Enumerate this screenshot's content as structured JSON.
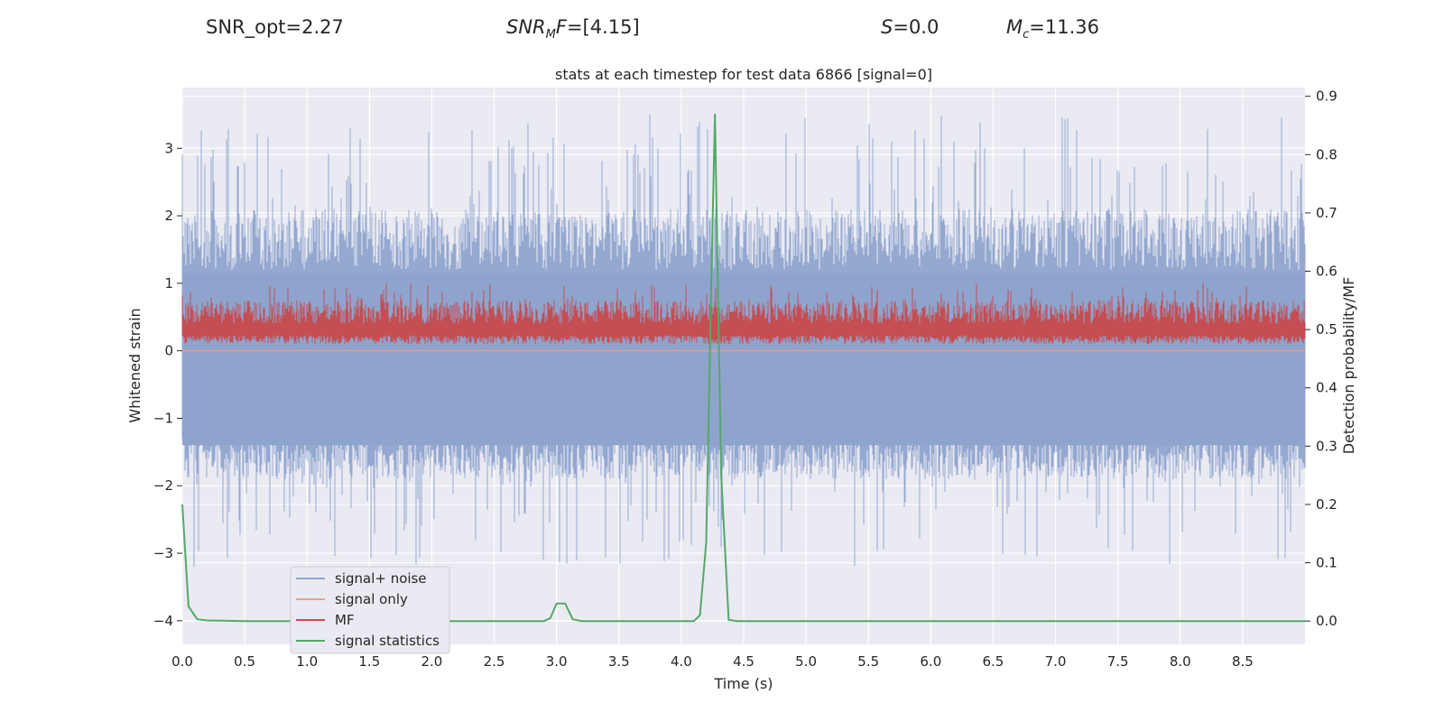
{
  "header": {
    "snr_opt": "SNR_opt=2.27",
    "snr_mf_sym": "SNR",
    "snr_mf_sub": "M",
    "snr_mf_tail": "F",
    "snr_mf_value": "=[4.15]",
    "s_sym": "S",
    "s_value": "=0.0",
    "mc_sym": "M",
    "mc_sub": "c",
    "mc_value": "=11.36"
  },
  "chart_data": {
    "type": "line",
    "title": "stats at each timestep for test data 6866 [signal=0]",
    "xlabel": "Time (s)",
    "ylabel": "Whitened strain",
    "ylabel_right": "Detection probability/MF",
    "xlim": [
      0.0,
      9.0
    ],
    "ylim": [
      -4.35,
      3.9
    ],
    "ylim_right": [
      -0.04,
      0.915
    ],
    "x_ticks": [
      "0.0",
      "0.5",
      "1.0",
      "1.5",
      "2.0",
      "2.5",
      "3.0",
      "3.5",
      "4.0",
      "4.5",
      "5.0",
      "5.5",
      "6.0",
      "6.5",
      "7.0",
      "7.5",
      "8.0",
      "8.5"
    ],
    "y_ticks": [
      "−4",
      "−3",
      "−2",
      "−1",
      "0",
      "1",
      "2",
      "3"
    ],
    "y_ticks_right": [
      "0.0",
      "0.1",
      "0.2",
      "0.3",
      "0.4",
      "0.5",
      "0.6",
      "0.7",
      "0.8",
      "0.9"
    ],
    "grid": true,
    "legend_position": "lower-left",
    "colors": {
      "noise": "#8fa4cd",
      "signal": "#e8a084",
      "mf": "#c44e52",
      "stats": "#55a868",
      "plot_bg": "#eaeaf2",
      "grid": "#ffffff"
    },
    "series": [
      {
        "name": "signal+ noise",
        "axis": "left",
        "description_range": [
          -3.2,
          3.5
        ],
        "baseline": -0.4
      },
      {
        "name": "signal only",
        "axis": "left",
        "values_constant": 0.0
      },
      {
        "name": "MF",
        "axis": "right",
        "range": [
          0.47,
          0.58
        ],
        "baseline": 0.5
      },
      {
        "name": "signal statistics",
        "axis": "right",
        "x": [
          0.0,
          0.05,
          0.12,
          0.2,
          0.5,
          2.9,
          2.95,
          3.0,
          3.07,
          3.13,
          3.2,
          4.1,
          4.15,
          4.2,
          4.24,
          4.27,
          4.32,
          4.38,
          4.45,
          9.0
        ],
        "y": [
          0.2,
          0.025,
          0.003,
          0.001,
          0.0,
          0.0,
          0.005,
          0.03,
          0.03,
          0.003,
          0.0,
          0.0,
          0.01,
          0.135,
          0.58,
          0.87,
          0.25,
          0.002,
          0.0,
          0.0
        ]
      }
    ]
  }
}
